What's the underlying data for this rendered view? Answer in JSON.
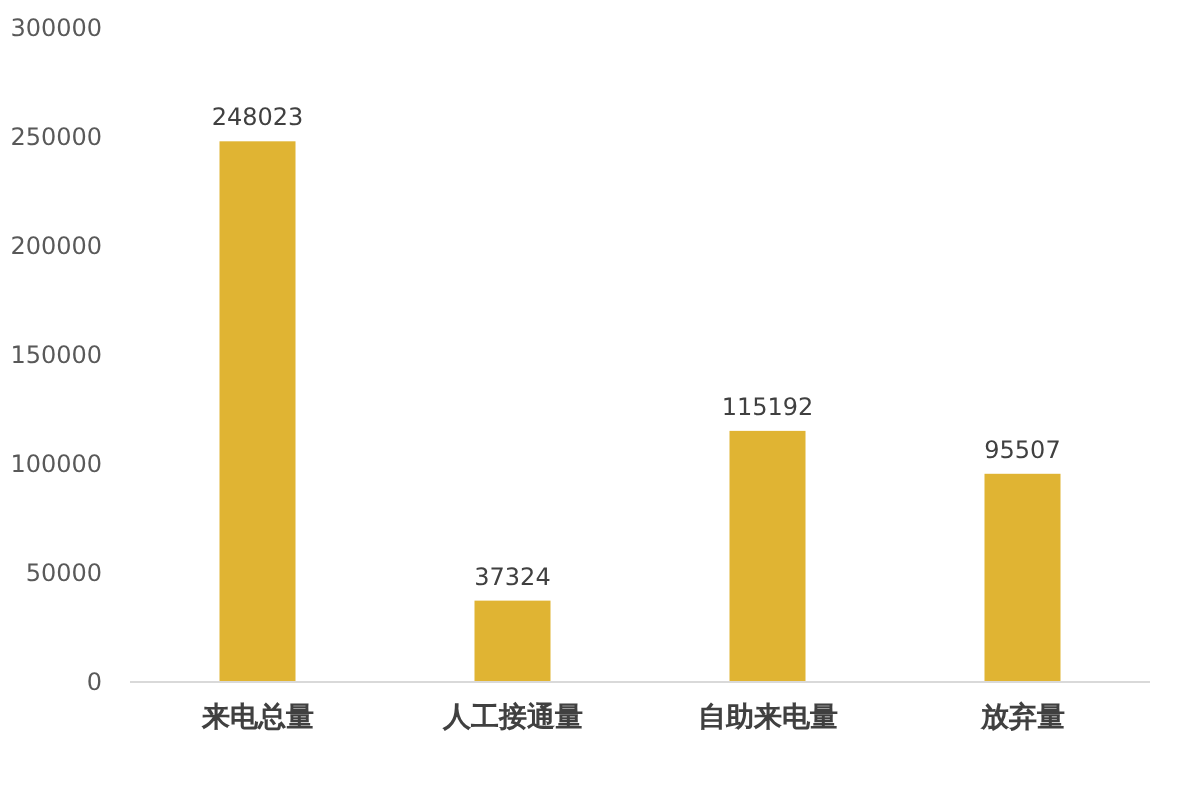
{
  "chart_data": {
    "type": "bar",
    "categories": [
      "来电总量",
      "人工接通量",
      "自助来电量",
      "放弃量"
    ],
    "values": [
      248023,
      37324,
      115192,
      95507
    ],
    "color": "#e0b433",
    "ylim": [
      0,
      300000
    ],
    "yticks": [
      0,
      50000,
      100000,
      150000,
      200000,
      250000,
      300000
    ],
    "data_labels": true,
    "grid": false
  }
}
